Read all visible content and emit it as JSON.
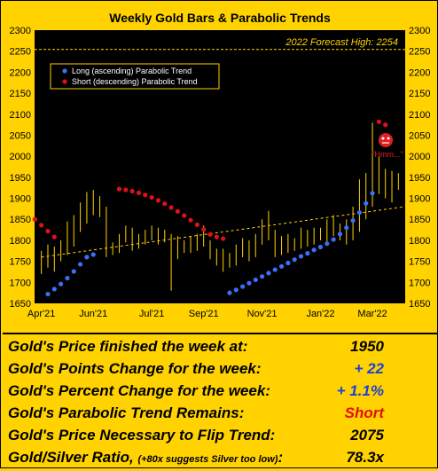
{
  "chart_data": {
    "type": "candlestick-bars",
    "title": "Weekly Gold Bars & Parabolic Trends",
    "ylim": [
      1650,
      2300
    ],
    "y_ticks": [
      1650,
      1700,
      1750,
      1800,
      1850,
      1900,
      1950,
      2000,
      2050,
      2100,
      2150,
      2200,
      2250,
      2300
    ],
    "x_tick_labels": [
      "Apr'21",
      "Jun'21",
      "Jul'21",
      "Sep'21",
      "Nov'21",
      "Jan'22",
      "Mar'22"
    ],
    "x_tick_week_index": [
      0,
      8,
      17,
      25,
      34,
      43,
      51
    ],
    "forecast_high": {
      "value": 2254,
      "label": "2022 Forecast High: 2254"
    },
    "legend": {
      "long_label": "Long (ascending) Parabolic Trend",
      "short_label": "Short (descending) Parabolic Trend"
    },
    "annotation": "\"Hmm...\"",
    "bars": [
      {
        "low": 1720,
        "high": 1775
      },
      {
        "low": 1735,
        "high": 1790
      },
      {
        "low": 1725,
        "high": 1785
      },
      {
        "low": 1750,
        "high": 1800
      },
      {
        "low": 1765,
        "high": 1845
      },
      {
        "low": 1785,
        "high": 1860
      },
      {
        "low": 1820,
        "high": 1890
      },
      {
        "low": 1840,
        "high": 1915
      },
      {
        "low": 1860,
        "high": 1920
      },
      {
        "low": 1855,
        "high": 1905
      },
      {
        "low": 1760,
        "high": 1880
      },
      {
        "low": 1765,
        "high": 1795
      },
      {
        "low": 1770,
        "high": 1815
      },
      {
        "low": 1795,
        "high": 1835
      },
      {
        "low": 1775,
        "high": 1830
      },
      {
        "low": 1780,
        "high": 1815
      },
      {
        "low": 1790,
        "high": 1825
      },
      {
        "low": 1800,
        "high": 1835
      },
      {
        "low": 1790,
        "high": 1830
      },
      {
        "low": 1795,
        "high": 1825
      },
      {
        "low": 1680,
        "high": 1815
      },
      {
        "low": 1755,
        "high": 1810
      },
      {
        "low": 1770,
        "high": 1800
      },
      {
        "low": 1770,
        "high": 1810
      },
      {
        "low": 1775,
        "high": 1815
      },
      {
        "low": 1785,
        "high": 1835
      },
      {
        "low": 1755,
        "high": 1800
      },
      {
        "low": 1740,
        "high": 1780
      },
      {
        "low": 1725,
        "high": 1780
      },
      {
        "low": 1735,
        "high": 1770
      },
      {
        "low": 1740,
        "high": 1790
      },
      {
        "low": 1760,
        "high": 1805
      },
      {
        "low": 1750,
        "high": 1800
      },
      {
        "low": 1760,
        "high": 1815
      },
      {
        "low": 1790,
        "high": 1850
      },
      {
        "low": 1800,
        "high": 1870
      },
      {
        "low": 1760,
        "high": 1825
      },
      {
        "low": 1765,
        "high": 1810
      },
      {
        "low": 1770,
        "high": 1815
      },
      {
        "low": 1775,
        "high": 1805
      },
      {
        "low": 1780,
        "high": 1830
      },
      {
        "low": 1785,
        "high": 1825
      },
      {
        "low": 1790,
        "high": 1830
      },
      {
        "low": 1800,
        "high": 1830
      },
      {
        "low": 1795,
        "high": 1850
      },
      {
        "low": 1810,
        "high": 1860
      },
      {
        "low": 1800,
        "high": 1840
      },
      {
        "low": 1790,
        "high": 1850
      },
      {
        "low": 1800,
        "high": 1880
      },
      {
        "low": 1820,
        "high": 1945
      },
      {
        "low": 1850,
        "high": 1960
      },
      {
        "low": 1880,
        "high": 2080
      },
      {
        "low": 1910,
        "high": 2000
      },
      {
        "low": 1900,
        "high": 1970
      },
      {
        "low": 1890,
        "high": 1965
      },
      {
        "low": 1920,
        "high": 1960
      }
    ],
    "long_trend": [
      {
        "i": 1,
        "v": 1672
      },
      {
        "i": 2,
        "v": 1684
      },
      {
        "i": 3,
        "v": 1696
      },
      {
        "i": 4,
        "v": 1710
      },
      {
        "i": 5,
        "v": 1726
      },
      {
        "i": 6,
        "v": 1743
      },
      {
        "i": 7,
        "v": 1760
      },
      {
        "i": 8,
        "v": 1766
      },
      {
        "i": 29,
        "v": 1675
      },
      {
        "i": 30,
        "v": 1682
      },
      {
        "i": 31,
        "v": 1690
      },
      {
        "i": 32,
        "v": 1698
      },
      {
        "i": 33,
        "v": 1706
      },
      {
        "i": 34,
        "v": 1714
      },
      {
        "i": 35,
        "v": 1722
      },
      {
        "i": 36,
        "v": 1730
      },
      {
        "i": 37,
        "v": 1738
      },
      {
        "i": 38,
        "v": 1746
      },
      {
        "i": 39,
        "v": 1754
      },
      {
        "i": 40,
        "v": 1762
      },
      {
        "i": 41,
        "v": 1769
      },
      {
        "i": 42,
        "v": 1777
      },
      {
        "i": 43,
        "v": 1784
      },
      {
        "i": 44,
        "v": 1792
      },
      {
        "i": 45,
        "v": 1802
      },
      {
        "i": 46,
        "v": 1815
      },
      {
        "i": 47,
        "v": 1830
      },
      {
        "i": 48,
        "v": 1847
      },
      {
        "i": 49,
        "v": 1866
      },
      {
        "i": 50,
        "v": 1888
      },
      {
        "i": 51,
        "v": 1912
      }
    ],
    "short_trend": [
      {
        "i": -1,
        "v": 1850
      },
      {
        "i": 0,
        "v": 1836
      },
      {
        "i": 1,
        "v": 1822
      },
      {
        "i": 2,
        "v": 1808
      },
      {
        "i": 12,
        "v": 1922
      },
      {
        "i": 13,
        "v": 1920
      },
      {
        "i": 14,
        "v": 1917
      },
      {
        "i": 15,
        "v": 1913
      },
      {
        "i": 16,
        "v": 1908
      },
      {
        "i": 17,
        "v": 1902
      },
      {
        "i": 18,
        "v": 1895
      },
      {
        "i": 19,
        "v": 1887
      },
      {
        "i": 20,
        "v": 1878
      },
      {
        "i": 21,
        "v": 1869
      },
      {
        "i": 22,
        "v": 1859
      },
      {
        "i": 23,
        "v": 1848
      },
      {
        "i": 24,
        "v": 1837
      },
      {
        "i": 25,
        "v": 1826
      },
      {
        "i": 26,
        "v": 1814
      },
      {
        "i": 27,
        "v": 1808
      },
      {
        "i": 28,
        "v": 1804
      },
      {
        "i": 52,
        "v": 2082
      },
      {
        "i": 53,
        "v": 2075
      }
    ],
    "dashed_trendline": [
      {
        "i": 0,
        "v": 1760
      },
      {
        "i": 56,
        "v": 1880
      }
    ]
  },
  "stats": [
    {
      "label": "Gold's Price finished the week at:",
      "value": "1950",
      "color": "black"
    },
    {
      "label": "Gold's Points Change for the week:",
      "value": "+ 22",
      "color": "blue"
    },
    {
      "label": "Gold's Percent Change for the week:",
      "value": "+ 1.1%",
      "color": "blue"
    },
    {
      "label": "Gold's Parabolic Trend Remains:",
      "value": "Short",
      "color": "red"
    },
    {
      "label": "Gold's Price Necessary to Flip Trend:",
      "value": "2075",
      "color": "black"
    },
    {
      "label": "Gold/Silver Ratio,",
      "note": "(+80x suggests Silver too low)",
      "suffix": ":",
      "value": "78.3x",
      "color": "black"
    }
  ],
  "colors": {
    "background": "#ffd200",
    "plot_bg": "#000000",
    "bars": "#ffd200",
    "long_trend": "#3a6ff7",
    "short_trend": "#e0101a",
    "forecast_line": "#ffd200"
  }
}
